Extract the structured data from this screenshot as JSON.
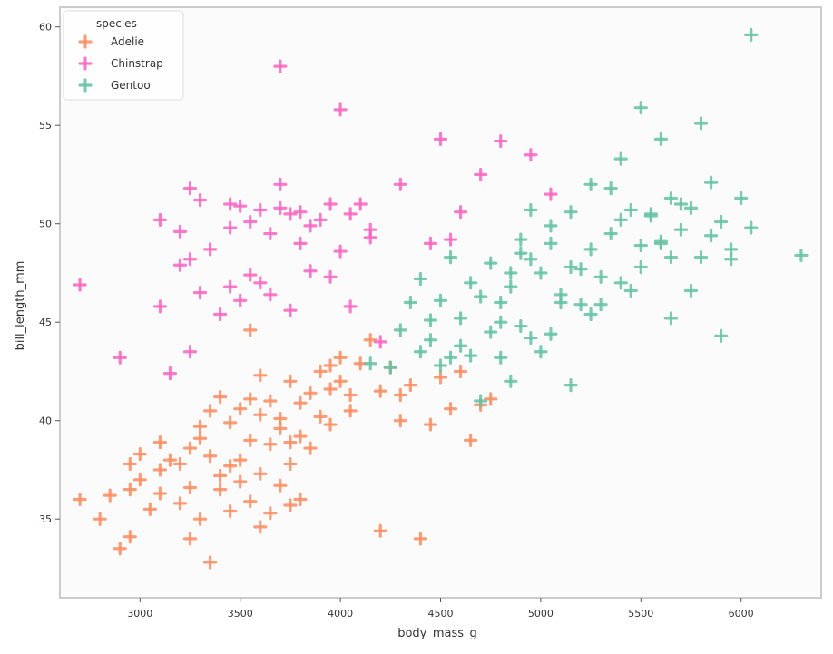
{
  "chart_data": {
    "type": "scatter",
    "title": "",
    "xlabel": "body_mass_g",
    "ylabel": "bill_length_mm",
    "xlim": [
      2600,
      6400
    ],
    "ylim": [
      31,
      61
    ],
    "xticks": [
      3000,
      3500,
      4000,
      4500,
      5000,
      5500,
      6000
    ],
    "xtick_labels": [
      "3000",
      "3500",
      "4000",
      "4500",
      "5000",
      "5500",
      "6000"
    ],
    "yticks": [
      35,
      40,
      45,
      50,
      55,
      60
    ],
    "ytick_labels": [
      "35",
      "40",
      "45",
      "50",
      "55",
      "60"
    ],
    "grid": false,
    "marker": "plus",
    "legend": {
      "title": "species",
      "position": "top-left"
    },
    "series": [
      {
        "name": "Adelie",
        "color": "#fc8d62",
        "points": [
          [
            2900,
            33.5
          ],
          [
            2950,
            34.1
          ],
          [
            2850,
            36.2
          ],
          [
            2950,
            36.5
          ],
          [
            3000,
            37.0
          ],
          [
            2950,
            37.8
          ],
          [
            3000,
            38.3
          ],
          [
            3050,
            35.5
          ],
          [
            3100,
            36.3
          ],
          [
            3100,
            37.5
          ],
          [
            3150,
            38.0
          ],
          [
            3200,
            35.8
          ],
          [
            3200,
            37.8
          ],
          [
            3250,
            38.6
          ],
          [
            3250,
            36.6
          ],
          [
            3300,
            39.1
          ],
          [
            3300,
            35.0
          ],
          [
            3300,
            39.7
          ],
          [
            3350,
            40.5
          ],
          [
            3350,
            38.2
          ],
          [
            3400,
            41.2
          ],
          [
            3400,
            37.2
          ],
          [
            3400,
            36.5
          ],
          [
            3450,
            39.9
          ],
          [
            3450,
            35.4
          ],
          [
            3450,
            37.7
          ],
          [
            3500,
            40.6
          ],
          [
            3500,
            38.0
          ],
          [
            3500,
            36.9
          ],
          [
            3550,
            41.1
          ],
          [
            3550,
            35.9
          ],
          [
            3550,
            39.0
          ],
          [
            3600,
            40.3
          ],
          [
            3600,
            42.3
          ],
          [
            3600,
            37.3
          ],
          [
            3650,
            38.8
          ],
          [
            3650,
            35.3
          ],
          [
            3650,
            41.0
          ],
          [
            3700,
            39.6
          ],
          [
            3700,
            36.7
          ],
          [
            3700,
            40.1
          ],
          [
            3750,
            38.9
          ],
          [
            3750,
            42.0
          ],
          [
            3750,
            37.8
          ],
          [
            3800,
            40.9
          ],
          [
            3800,
            36.0
          ],
          [
            3800,
            39.2
          ],
          [
            3850,
            38.6
          ],
          [
            3850,
            41.4
          ],
          [
            3900,
            40.2
          ],
          [
            3900,
            42.5
          ],
          [
            3950,
            39.8
          ],
          [
            3950,
            41.6
          ],
          [
            4000,
            42.0
          ],
          [
            4000,
            43.2
          ],
          [
            4050,
            41.3
          ],
          [
            4050,
            40.5
          ],
          [
            4100,
            42.9
          ],
          [
            4150,
            44.1
          ],
          [
            4200,
            41.5
          ],
          [
            4250,
            42.7
          ],
          [
            4300,
            40.0
          ],
          [
            4350,
            41.8
          ],
          [
            4450,
            39.8
          ],
          [
            4500,
            42.2
          ],
          [
            4550,
            40.6
          ],
          [
            4650,
            39.0
          ],
          [
            4700,
            40.8
          ],
          [
            4750,
            41.1
          ],
          [
            3250,
            34.0
          ],
          [
            2700,
            36.0
          ],
          [
            2800,
            35.0
          ],
          [
            3350,
            32.8
          ],
          [
            3600,
            34.6
          ],
          [
            4200,
            34.4
          ],
          [
            4400,
            34.0
          ],
          [
            3750,
            35.7
          ],
          [
            4600,
            42.5
          ],
          [
            4300,
            41.3
          ],
          [
            3550,
            44.6
          ],
          [
            3950,
            42.8
          ],
          [
            3100,
            38.9
          ]
        ]
      },
      {
        "name": "Chinstrap",
        "color": "#f766c2",
        "points": [
          [
            2700,
            46.9
          ],
          [
            2900,
            43.2
          ],
          [
            3250,
            43.5
          ],
          [
            3150,
            42.4
          ],
          [
            3100,
            45.8
          ],
          [
            3100,
            50.2
          ],
          [
            3200,
            49.6
          ],
          [
            3200,
            47.9
          ],
          [
            3250,
            48.2
          ],
          [
            3300,
            51.2
          ],
          [
            3350,
            48.7
          ],
          [
            3300,
            46.5
          ],
          [
            3400,
            45.4
          ],
          [
            3450,
            46.8
          ],
          [
            3450,
            49.8
          ],
          [
            3500,
            50.9
          ],
          [
            3500,
            46.1
          ],
          [
            3550,
            50.1
          ],
          [
            3550,
            47.4
          ],
          [
            3600,
            50.7
          ],
          [
            3650,
            49.5
          ],
          [
            3650,
            46.4
          ],
          [
            3700,
            50.8
          ],
          [
            3700,
            52.0
          ],
          [
            3750,
            50.5
          ],
          [
            3750,
            45.6
          ],
          [
            3800,
            49.0
          ],
          [
            3850,
            47.6
          ],
          [
            3850,
            49.9
          ],
          [
            3900,
            50.2
          ],
          [
            3950,
            51.0
          ],
          [
            4000,
            48.6
          ],
          [
            4050,
            50.5
          ],
          [
            4100,
            51.0
          ],
          [
            4150,
            49.3
          ],
          [
            4200,
            44.0
          ],
          [
            4300,
            52.0
          ],
          [
            4450,
            49.0
          ],
          [
            4550,
            49.2
          ],
          [
            4600,
            50.6
          ],
          [
            4700,
            52.5
          ],
          [
            4800,
            54.2
          ],
          [
            4950,
            53.5
          ],
          [
            3700,
            58.0
          ],
          [
            4000,
            55.8
          ],
          [
            4500,
            54.3
          ],
          [
            5050,
            51.5
          ],
          [
            3950,
            47.3
          ],
          [
            4150,
            49.7
          ],
          [
            3600,
            47.0
          ],
          [
            3800,
            50.6
          ],
          [
            4050,
            45.8
          ],
          [
            3450,
            51.0
          ],
          [
            3250,
            51.8
          ]
        ]
      },
      {
        "name": "Gentoo",
        "color": "#66c2a5",
        "points": [
          [
            4300,
            44.6
          ],
          [
            4350,
            46.0
          ],
          [
            4400,
            47.2
          ],
          [
            4500,
            46.1
          ],
          [
            4600,
            45.2
          ],
          [
            4650,
            47.0
          ],
          [
            4700,
            46.3
          ],
          [
            4750,
            48.0
          ],
          [
            4800,
            45.0
          ],
          [
            4850,
            46.8
          ],
          [
            4900,
            48.5
          ],
          [
            4950,
            44.2
          ],
          [
            5000,
            47.5
          ],
          [
            5050,
            49.0
          ],
          [
            5100,
            46.4
          ],
          [
            5150,
            47.8
          ],
          [
            5200,
            45.9
          ],
          [
            5250,
            48.7
          ],
          [
            5300,
            47.3
          ],
          [
            5350,
            49.5
          ],
          [
            5400,
            50.2
          ],
          [
            5450,
            46.6
          ],
          [
            5500,
            48.9
          ],
          [
            5550,
            50.5
          ],
          [
            5600,
            49.1
          ],
          [
            5650,
            51.3
          ],
          [
            5700,
            49.7
          ],
          [
            5750,
            50.8
          ],
          [
            5800,
            48.3
          ],
          [
            5850,
            49.4
          ],
          [
            5900,
            50.1
          ],
          [
            5950,
            48.2
          ],
          [
            6000,
            51.3
          ],
          [
            6050,
            49.8
          ],
          [
            6300,
            48.4
          ],
          [
            5500,
            55.9
          ],
          [
            5600,
            54.3
          ],
          [
            5800,
            55.1
          ],
          [
            6050,
            59.6
          ],
          [
            5400,
            53.3
          ],
          [
            5350,
            51.8
          ],
          [
            5250,
            52.0
          ],
          [
            5150,
            50.6
          ],
          [
            5050,
            49.9
          ],
          [
            4950,
            48.2
          ],
          [
            4900,
            49.2
          ],
          [
            4850,
            47.5
          ],
          [
            4800,
            46.0
          ],
          [
            4750,
            44.5
          ],
          [
            4650,
            43.3
          ],
          [
            4600,
            43.8
          ],
          [
            4550,
            43.2
          ],
          [
            4500,
            42.8
          ],
          [
            4450,
            44.1
          ],
          [
            4400,
            43.5
          ],
          [
            4800,
            43.2
          ],
          [
            5100,
            46.0
          ],
          [
            5200,
            47.7
          ],
          [
            5300,
            45.9
          ],
          [
            5450,
            50.7
          ],
          [
            5550,
            50.4
          ],
          [
            5600,
            49.0
          ],
          [
            5650,
            48.3
          ],
          [
            5700,
            51.0
          ],
          [
            5900,
            44.3
          ],
          [
            5950,
            48.7
          ],
          [
            5000,
            43.5
          ],
          [
            4900,
            44.8
          ],
          [
            5050,
            44.4
          ],
          [
            5150,
            41.8
          ],
          [
            4250,
            42.7
          ],
          [
            4150,
            42.9
          ],
          [
            4450,
            45.1
          ],
          [
            4700,
            41.0
          ],
          [
            4850,
            42.0
          ],
          [
            4950,
            50.7
          ],
          [
            5250,
            45.4
          ],
          [
            5400,
            47.0
          ],
          [
            5500,
            47.8
          ],
          [
            5650,
            45.2
          ],
          [
            5750,
            46.6
          ],
          [
            5850,
            52.1
          ],
          [
            4550,
            48.3
          ]
        ]
      }
    ]
  }
}
